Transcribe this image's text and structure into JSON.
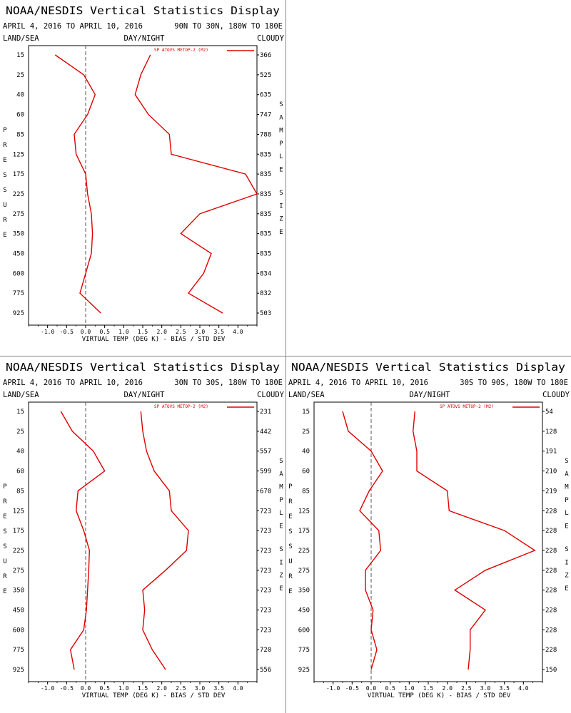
{
  "chart_data": [
    {
      "type": "line",
      "title": "NOAA/NESDIS Vertical Statistics Display",
      "date_range": "APRIL 4, 2016 TO APRIL 10, 2016",
      "region": "90N TO 30N, 180W TO 180E",
      "header_left": "LAND/SEA",
      "header_center": "DAY/NIGHT",
      "header_right": "CLOUDY",
      "xlabel": "VIRTUAL TEMP (DEG K) - BIAS / STD DEV",
      "ylabel": "PRESSURE",
      "right_label": "SAMPLE SIZE",
      "xlim": [
        -1.5,
        4.5
      ],
      "xticks": [
        -1.0,
        -0.5,
        0.0,
        0.5,
        1.0,
        1.5,
        2.0,
        2.5,
        3.0,
        3.5,
        4.0
      ],
      "pressure_levels": [
        15,
        25,
        40,
        60,
        85,
        125,
        175,
        225,
        275,
        350,
        450,
        600,
        775,
        925
      ],
      "sample_size": [
        366,
        525,
        635,
        747,
        788,
        835,
        835,
        835,
        835,
        835,
        835,
        834,
        832,
        503
      ],
      "legend": "SP ATOVS METOP-2 (M2)",
      "series": [
        {
          "role": "bias",
          "values": [
            -0.8,
            -0.05,
            0.25,
            0.05,
            -0.3,
            -0.25,
            0.0,
            0.05,
            0.15,
            0.18,
            0.15,
            0.0,
            -0.15,
            0.4
          ]
        },
        {
          "role": "std_dev",
          "values": [
            1.7,
            1.45,
            1.3,
            1.65,
            2.2,
            2.25,
            4.2,
            4.5,
            3.0,
            2.5,
            3.3,
            3.1,
            2.7,
            3.6
          ]
        }
      ]
    },
    {
      "type": "line",
      "title": "NOAA/NESDIS Vertical Statistics Display",
      "date_range": "APRIL 4, 2016 TO APRIL 10, 2016",
      "region": "30N TO 30S, 180W TO 180E",
      "header_left": "LAND/SEA",
      "header_center": "DAY/NIGHT",
      "header_right": "CLOUDY",
      "xlabel": "VIRTUAL TEMP (DEG K) - BIAS / STD DEV",
      "ylabel": "PRESSURE",
      "right_label": "SAMPLE SIZE",
      "xlim": [
        -1.5,
        4.5
      ],
      "xticks": [
        -1.0,
        -0.5,
        0.0,
        0.5,
        1.0,
        1.5,
        2.0,
        2.5,
        3.0,
        3.5,
        4.0
      ],
      "pressure_levels": [
        15,
        25,
        40,
        60,
        85,
        125,
        175,
        225,
        275,
        350,
        450,
        600,
        775,
        925
      ],
      "sample_size": [
        231,
        442,
        557,
        599,
        670,
        723,
        723,
        723,
        723,
        723,
        723,
        723,
        720,
        556
      ],
      "legend": "SP ATOVS METOP-2 (M2)",
      "series": [
        {
          "role": "bias",
          "values": [
            -0.65,
            -0.35,
            0.2,
            0.5,
            -0.2,
            -0.25,
            -0.05,
            0.1,
            0.08,
            0.05,
            0.02,
            -0.05,
            -0.4,
            -0.3
          ]
        },
        {
          "role": "std_dev",
          "values": [
            1.45,
            1.5,
            1.6,
            1.8,
            2.2,
            2.25,
            2.7,
            2.65,
            2.1,
            1.5,
            1.55,
            1.5,
            1.75,
            2.1
          ]
        }
      ]
    },
    {
      "type": "line",
      "title": "NOAA/NESDIS Vertical Statistics Display",
      "date_range": "APRIL 4, 2016 TO APRIL 10, 2016",
      "region": "30S TO 90S, 180W TO 180E",
      "header_left": "LAND/SEA",
      "header_center": "DAY/NIGHT",
      "header_right": "CLOUDY",
      "xlabel": "VIRTUAL TEMP (DEG K) - BIAS / STD DEV",
      "ylabel": "PRESSURE",
      "right_label": "SAMPLE SIZE",
      "xlim": [
        -1.5,
        4.5
      ],
      "xticks": [
        -1.0,
        -0.5,
        0.0,
        0.5,
        1.0,
        1.5,
        2.0,
        2.5,
        3.0,
        3.5,
        4.0
      ],
      "pressure_levels": [
        15,
        25,
        40,
        60,
        85,
        125,
        175,
        225,
        275,
        350,
        450,
        600,
        775,
        925
      ],
      "sample_size": [
        54,
        128,
        191,
        210,
        219,
        228,
        228,
        228,
        228,
        228,
        228,
        228,
        228,
        150
      ],
      "legend": "SP ATOVS METOP-2 (M2)",
      "series": [
        {
          "role": "bias",
          "values": [
            -0.75,
            -0.6,
            0.0,
            0.3,
            -0.05,
            -0.3,
            0.2,
            0.25,
            -0.15,
            -0.15,
            0.05,
            0.0,
            0.15,
            0.0
          ]
        },
        {
          "role": "std_dev",
          "values": [
            1.15,
            1.1,
            1.2,
            1.2,
            2.0,
            2.05,
            3.5,
            4.3,
            3.0,
            2.2,
            3.0,
            2.6,
            2.6,
            2.55
          ]
        }
      ]
    }
  ],
  "colors": {
    "series": "#e00000",
    "axis": "#000000",
    "zero_line": "#555555",
    "divider": "#888888"
  }
}
